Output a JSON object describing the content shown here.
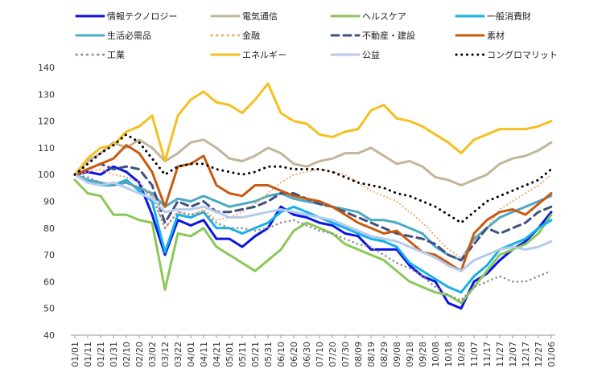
{
  "chart_data": {
    "type": "line",
    "ylim": [
      40,
      140
    ],
    "yticks": [
      40,
      50,
      60,
      70,
      80,
      90,
      100,
      110,
      120,
      130,
      140
    ],
    "grid": false,
    "legend_position": "top",
    "categories": [
      "01/01",
      "01/11",
      "01/21",
      "01/31",
      "02/10",
      "02/20",
      "03/02",
      "03/12",
      "03/22",
      "04/01",
      "04/11",
      "04/21",
      "05/01",
      "05/11",
      "05/21",
      "05/31",
      "06/10",
      "06/20",
      "06/30",
      "07/10",
      "07/20",
      "07/30",
      "08/09",
      "08/19",
      "08/29",
      "09/08",
      "09/18",
      "09/28",
      "10/08",
      "10/18",
      "10/28",
      "11/07",
      "11/17",
      "11/27",
      "12/07",
      "12/17",
      "12/27",
      "01/06"
    ],
    "series": [
      {
        "name": "情報テクノロジー",
        "color": "#0a16e0",
        "dash": "solid",
        "width": 3,
        "values": [
          100,
          101,
          100,
          103,
          101,
          97,
          85,
          70,
          83,
          81,
          83,
          76,
          76,
          73,
          77,
          80,
          88,
          85,
          84,
          82,
          81,
          78,
          77,
          72,
          72,
          72,
          66,
          62,
          60,
          52,
          50,
          60,
          63,
          68,
          72,
          75,
          80,
          86
        ]
      },
      {
        "name": "電気通信",
        "color": "#c4b49a",
        "dash": "solid",
        "width": 3,
        "values": [
          100,
          105,
          108,
          112,
          110,
          113,
          110,
          105,
          108,
          112,
          113,
          110,
          106,
          105,
          107,
          110,
          108,
          104,
          103,
          105,
          106,
          108,
          108,
          110,
          107,
          104,
          105,
          103,
          99,
          98,
          96,
          98,
          100,
          104,
          106,
          107,
          109,
          112
        ]
      },
      {
        "name": "ヘルスケア",
        "color": "#8ac858",
        "dash": "solid",
        "width": 3,
        "values": [
          98,
          93,
          92,
          85,
          85,
          83,
          82,
          57,
          78,
          77,
          80,
          73,
          70,
          67,
          64,
          68,
          72,
          79,
          82,
          80,
          78,
          74,
          72,
          70,
          68,
          64,
          60,
          58,
          56,
          55,
          52,
          58,
          64,
          70,
          72,
          74,
          78,
          85
        ]
      },
      {
        "name": "一般消費財",
        "color": "#16b0e8",
        "dash": "solid",
        "width": 3,
        "values": [
          100,
          98,
          96,
          96,
          98,
          94,
          90,
          71,
          85,
          84,
          86,
          80,
          80,
          78,
          80,
          82,
          86,
          88,
          86,
          84,
          82,
          80,
          78,
          76,
          75,
          73,
          67,
          64,
          61,
          58,
          56,
          62,
          66,
          72,
          74,
          76,
          80,
          83
        ]
      },
      {
        "name": "生活必需品",
        "color": "#4aaac4",
        "dash": "solid",
        "width": 3,
        "values": [
          100,
          98,
          97,
          96,
          97,
          95,
          93,
          88,
          91,
          90,
          92,
          90,
          88,
          89,
          90,
          92,
          93,
          91,
          90,
          89,
          88,
          87,
          86,
          83,
          83,
          82,
          80,
          78,
          73,
          70,
          68,
          76,
          80,
          84,
          86,
          88,
          90,
          92
        ]
      },
      {
        "name": "金融",
        "color": "#f4a060",
        "dash": "dot",
        "width": 2,
        "values": [
          100,
          101,
          102,
          100,
          99,
          97,
          92,
          80,
          86,
          85,
          87,
          83,
          84,
          86,
          89,
          93,
          97,
          100,
          101,
          102,
          101,
          100,
          97,
          94,
          92,
          90,
          86,
          82,
          77,
          72,
          69,
          74,
          80,
          87,
          90,
          93,
          96,
          100
        ]
      },
      {
        "name": "不動産・建設",
        "color": "#405080",
        "dash": "dash",
        "width": 3,
        "values": [
          100,
          102,
          104,
          102,
          103,
          102,
          96,
          82,
          90,
          88,
          90,
          86,
          86,
          87,
          88,
          90,
          93,
          93,
          91,
          89,
          88,
          86,
          84,
          82,
          80,
          78,
          77,
          76,
          74,
          70,
          68,
          74,
          80,
          78,
          80,
          82,
          86,
          88
        ]
      },
      {
        "name": "素材",
        "color": "#c85a10",
        "dash": "solid",
        "width": 3,
        "values": [
          100,
          102,
          104,
          106,
          111,
          108,
          101,
          88,
          103,
          104,
          107,
          96,
          93,
          92,
          96,
          96,
          94,
          92,
          91,
          90,
          88,
          85,
          82,
          80,
          78,
          79,
          75,
          71,
          70,
          67,
          64,
          78,
          83,
          86,
          87,
          85,
          89,
          93
        ]
      },
      {
        "name": "工業",
        "color": "#8a8a8a",
        "dash": "dot",
        "width": 2.5,
        "values": [
          100,
          99,
          97,
          96,
          97,
          95,
          92,
          80,
          86,
          85,
          86,
          82,
          80,
          80,
          79,
          80,
          82,
          83,
          81,
          79,
          78,
          76,
          74,
          73,
          70,
          67,
          65,
          62,
          58,
          55,
          53,
          58,
          60,
          62,
          60,
          60,
          62,
          64
        ]
      },
      {
        "name": "エネルギー",
        "color": "#f4c020",
        "dash": "solid",
        "width": 3,
        "values": [
          100,
          106,
          110,
          111,
          116,
          118,
          122,
          105,
          122,
          128,
          131,
          127,
          126,
          123,
          128,
          134,
          123,
          120,
          119,
          115,
          114,
          116,
          117,
          124,
          126,
          121,
          120,
          118,
          115,
          112,
          108,
          113,
          115,
          117,
          117,
          117,
          118,
          120
        ]
      },
      {
        "name": "公益",
        "color": "#b4ccec",
        "dash": "solid",
        "width": 3,
        "values": [
          100,
          97,
          96,
          97,
          95,
          93,
          91,
          86,
          87,
          87,
          88,
          86,
          84,
          84,
          85,
          86,
          87,
          86,
          85,
          84,
          83,
          81,
          79,
          77,
          76,
          75,
          73,
          71,
          69,
          66,
          64,
          68,
          70,
          72,
          73,
          72,
          73,
          75
        ]
      },
      {
        "name": "コングロマリット",
        "color": "#000000",
        "dash": "dot",
        "width": 3,
        "values": [
          100,
          104,
          108,
          111,
          115,
          112,
          106,
          100,
          103,
          104,
          104,
          102,
          101,
          100,
          101,
          103,
          103,
          102,
          102,
          102,
          101,
          99,
          97,
          96,
          95,
          93,
          92,
          90,
          88,
          85,
          82,
          86,
          90,
          92,
          94,
          96,
          98,
          102
        ]
      }
    ]
  }
}
